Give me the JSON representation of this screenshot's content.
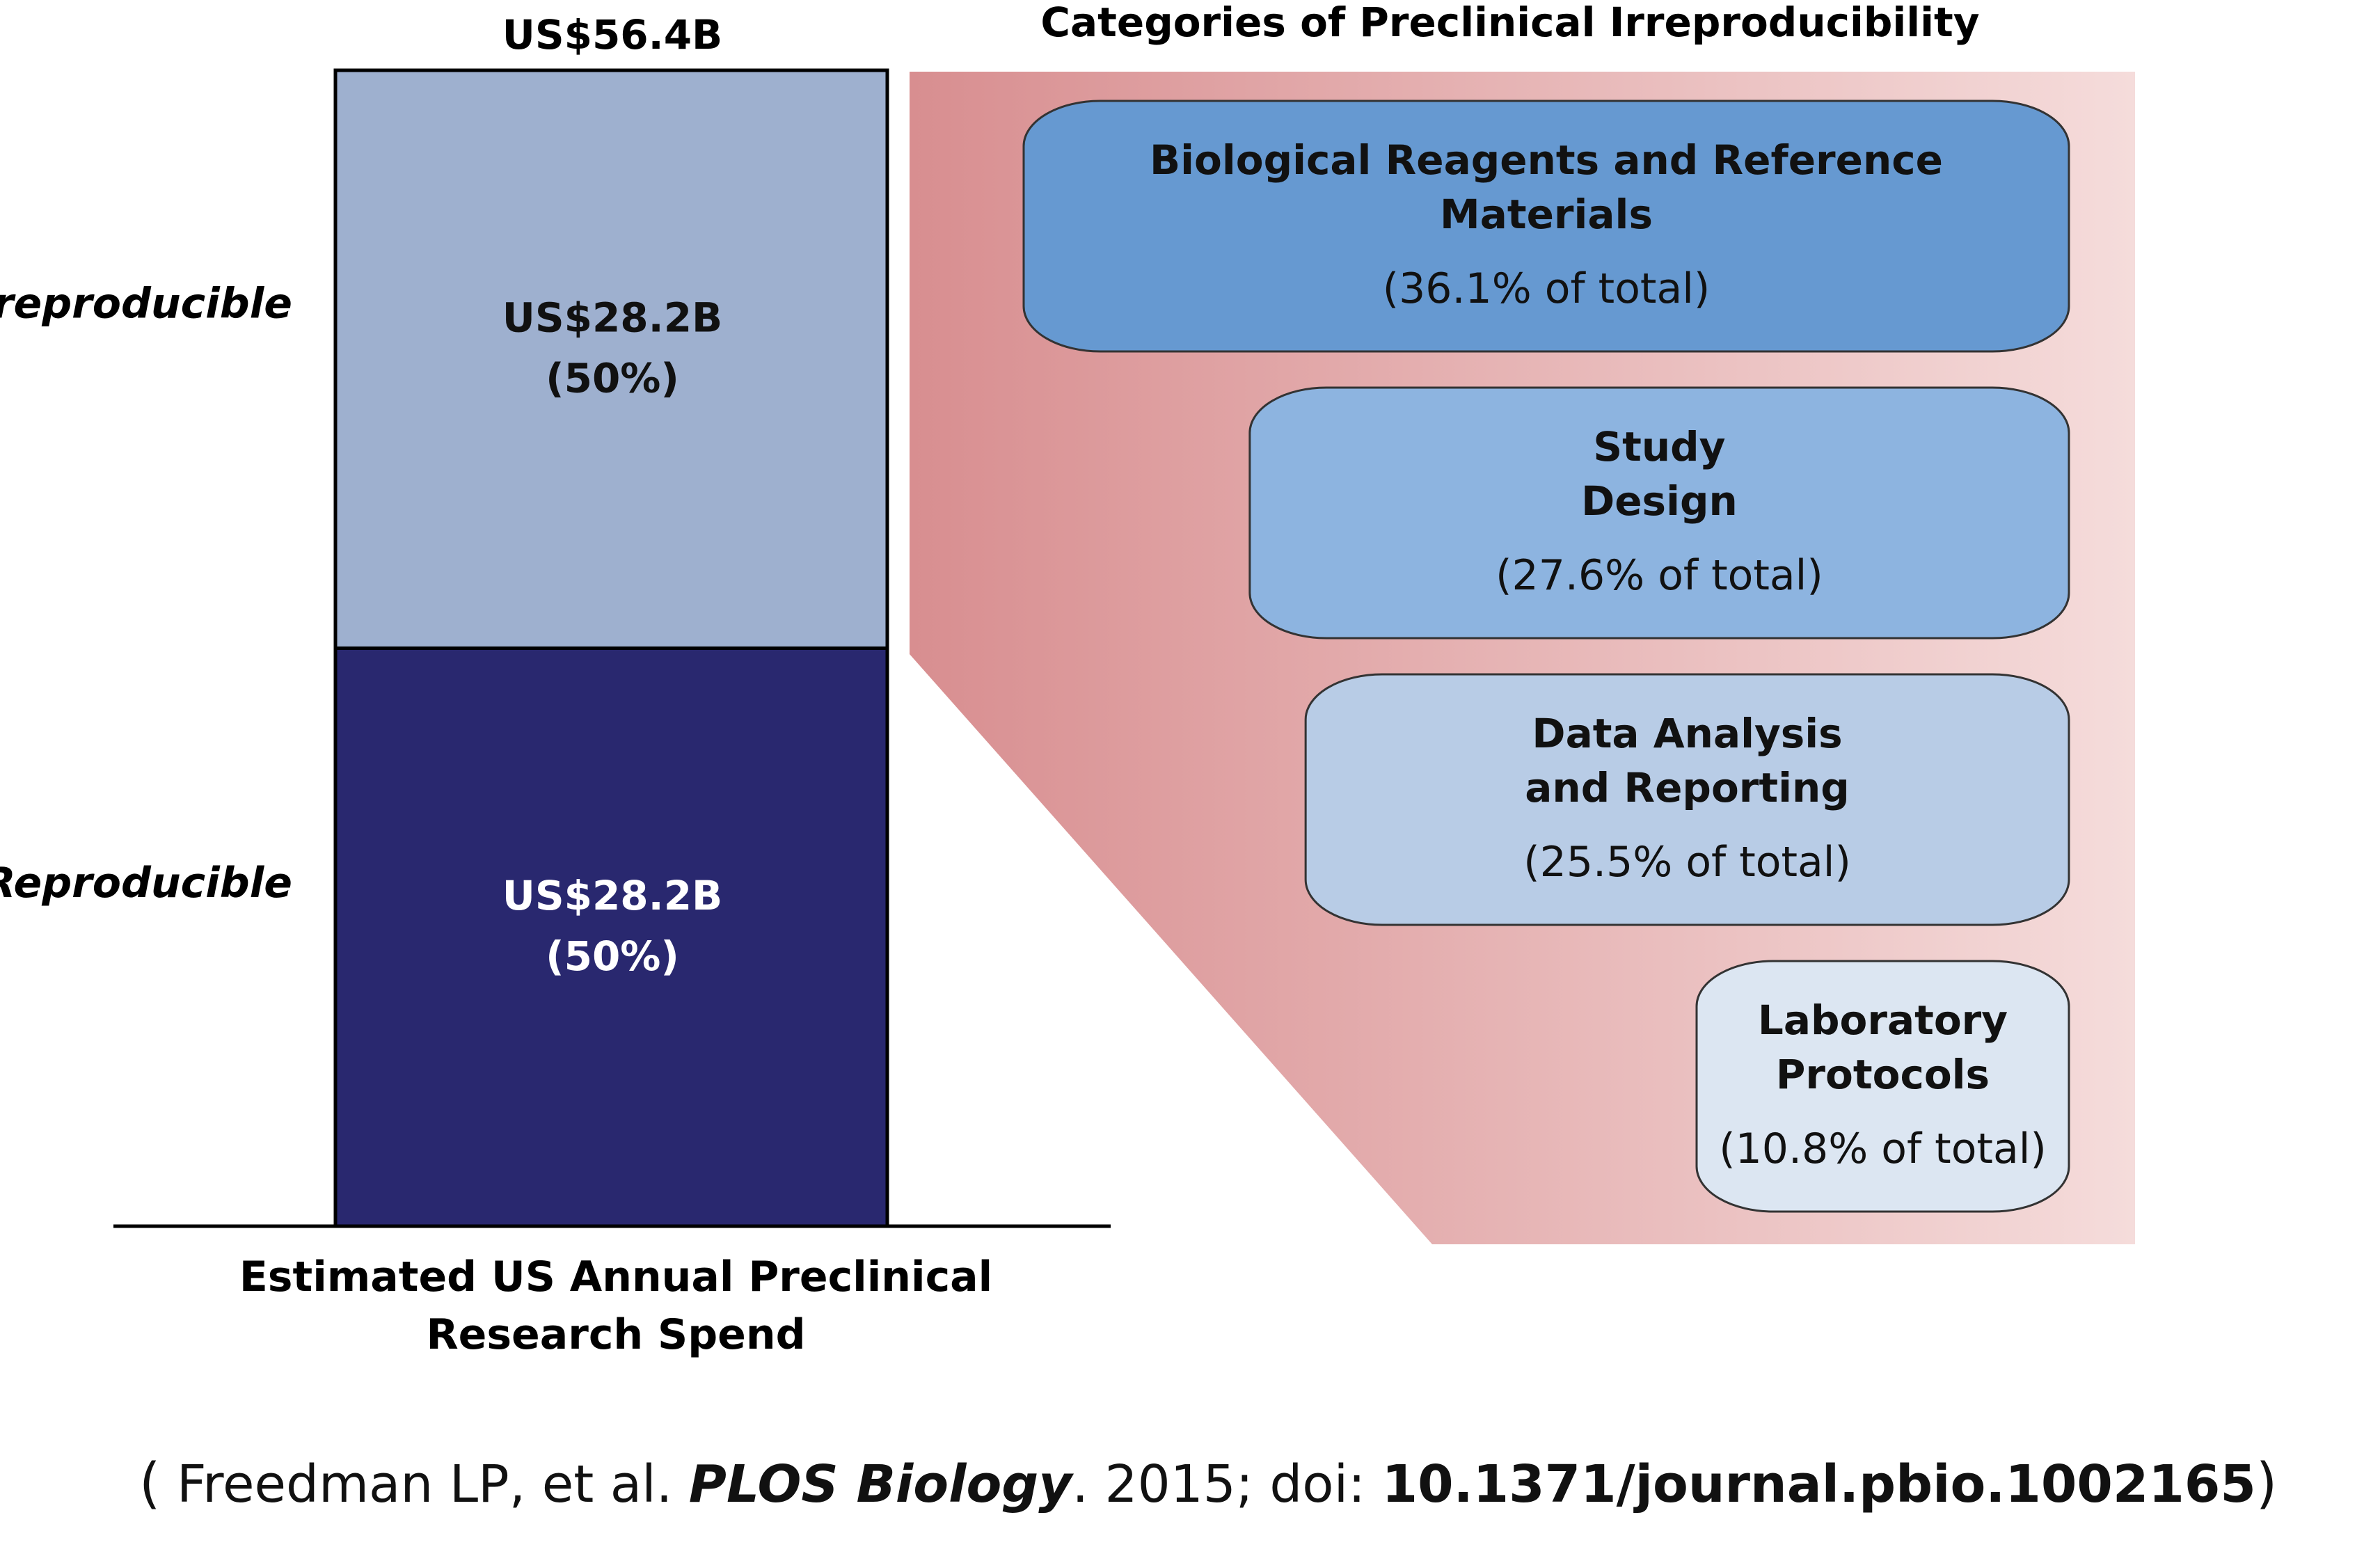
{
  "chart_data": {
    "type": "bar",
    "title": "",
    "total_label": "US$56.4B",
    "xlabel": [
      "Estimated US Annual Preclinical",
      "Research Spend"
    ],
    "ylabel": "",
    "unit": "US$ billions",
    "ylim": [
      0,
      56.4
    ],
    "series": [
      {
        "name": "Reproducible",
        "value": 28.2,
        "value_label": "US$28.2B",
        "percent_label": "(50%)",
        "color": "#29286f"
      },
      {
        "name": "Irreproducible",
        "value": 28.2,
        "value_label": "US$28.2B",
        "percent_label": "(50%)",
        "color": "#9eb0cf"
      }
    ],
    "breakdown": {
      "title": "Categories of Preclinical Irreproducibility",
      "source_segment": "Irreproducible",
      "categories": [
        {
          "name_lines": [
            "Biological Reagents and Reference",
            "Materials"
          ],
          "percent": 36.1,
          "percent_label": "(36.1% of total)",
          "color": "#6699d1"
        },
        {
          "name_lines": [
            "Study",
            "Design"
          ],
          "percent": 27.6,
          "percent_label": "(27.6% of total)",
          "color": "#8db4e0"
        },
        {
          "name_lines": [
            "Data Analysis",
            "and Reporting"
          ],
          "percent": 25.5,
          "percent_label": "(25.5% of total)",
          "color": "#b8cce6"
        },
        {
          "name_lines": [
            "Laboratory",
            "Protocols"
          ],
          "percent": 10.8,
          "percent_label": "(10.8% of total)",
          "color": "#dce6f2"
        }
      ]
    }
  },
  "citation": {
    "open_paren": "(",
    "authors": "Freedman LP, et al.",
    "journal": "PLOS Biology",
    "year_doi_label": ". 2015; doi: ",
    "doi": "10.1371/journal.pbio.1002165",
    "close_paren": ")"
  }
}
